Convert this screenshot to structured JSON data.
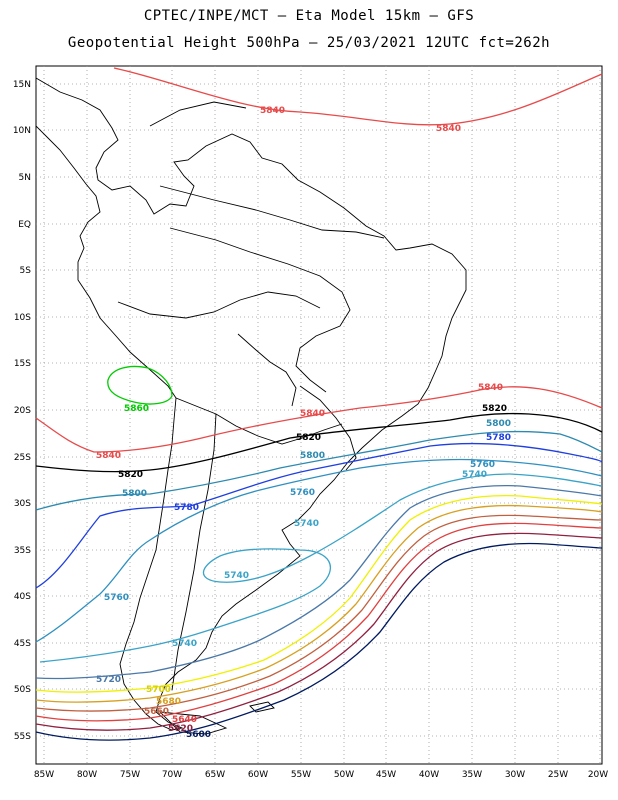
{
  "title_line1": "CPTEC/INPE/MCT –  Eta Model 15km – GFS",
  "title_line2": "Geopotential Height 500hPa – 25/03/2021 12UTC fct=262h",
  "lat_ticks": [
    "15N",
    "10N",
    "5N",
    "EQ",
    "5S",
    "10S",
    "15S",
    "20S",
    "25S",
    "30S",
    "35S",
    "40S",
    "45S",
    "50S",
    "55S"
  ],
  "lon_ticks": [
    "85W",
    "80W",
    "75W",
    "70W",
    "65W",
    "60W",
    "55W",
    "50W",
    "45W",
    "40W",
    "35W",
    "30W",
    "25W",
    "20W"
  ],
  "contour_labels": {
    "c5840": "5840",
    "c5820": "5820",
    "c5800": "5800",
    "c5780": "5780",
    "c5760": "5760",
    "c5740": "5740",
    "c5720": "5720",
    "c5700": "5700",
    "c5680": "5680",
    "c5660": "5660",
    "c5640": "5640",
    "c5620": "5620",
    "c5600": "5600",
    "c5860": "5860"
  },
  "colors": {
    "c5860": "#00cc00",
    "c5840": "#e84a4a",
    "c5820": "#000000",
    "c5800": "#2c8ab0",
    "c5780": "#1f3fe0",
    "c5760": "#2f90c0",
    "c5740": "#3aa3c8",
    "c5720": "#4a78a8",
    "c5700": "#f0f000",
    "c5680": "#d8a020",
    "c5660": "#c06040",
    "c5640": "#e04040",
    "c5620": "#902040",
    "c5600": "#001a60"
  }
}
